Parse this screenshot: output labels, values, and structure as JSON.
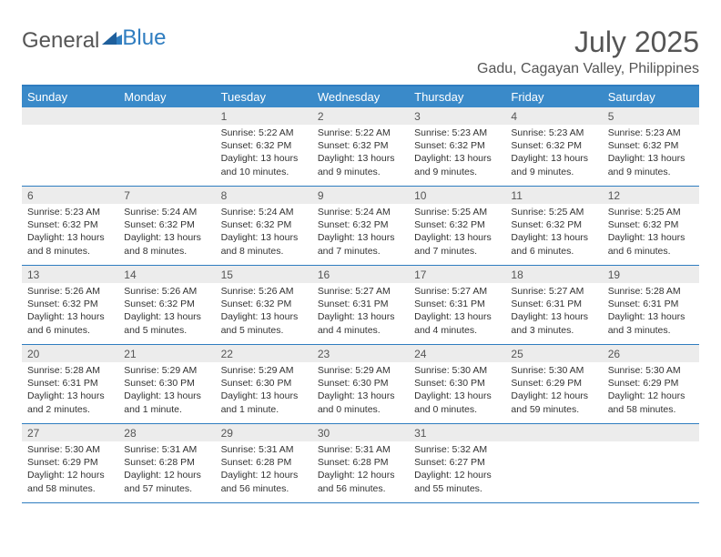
{
  "brand": {
    "part1": "General",
    "part2": "Blue"
  },
  "title": "July 2025",
  "location": "Gadu, Cagayan Valley, Philippines",
  "colors": {
    "header_bg": "#3A8AC9",
    "border": "#2F7DC0",
    "daynum_bg": "#ececec",
    "text": "#323232",
    "title_text": "#555555",
    "white": "#ffffff"
  },
  "day_names": [
    "Sunday",
    "Monday",
    "Tuesday",
    "Wednesday",
    "Thursday",
    "Friday",
    "Saturday"
  ],
  "weeks": [
    [
      {
        "n": "",
        "sr": "",
        "ss": "",
        "dl": ""
      },
      {
        "n": "",
        "sr": "",
        "ss": "",
        "dl": ""
      },
      {
        "n": "1",
        "sr": "Sunrise: 5:22 AM",
        "ss": "Sunset: 6:32 PM",
        "dl": "Daylight: 13 hours and 10 minutes."
      },
      {
        "n": "2",
        "sr": "Sunrise: 5:22 AM",
        "ss": "Sunset: 6:32 PM",
        "dl": "Daylight: 13 hours and 9 minutes."
      },
      {
        "n": "3",
        "sr": "Sunrise: 5:23 AM",
        "ss": "Sunset: 6:32 PM",
        "dl": "Daylight: 13 hours and 9 minutes."
      },
      {
        "n": "4",
        "sr": "Sunrise: 5:23 AM",
        "ss": "Sunset: 6:32 PM",
        "dl": "Daylight: 13 hours and 9 minutes."
      },
      {
        "n": "5",
        "sr": "Sunrise: 5:23 AM",
        "ss": "Sunset: 6:32 PM",
        "dl": "Daylight: 13 hours and 9 minutes."
      }
    ],
    [
      {
        "n": "6",
        "sr": "Sunrise: 5:23 AM",
        "ss": "Sunset: 6:32 PM",
        "dl": "Daylight: 13 hours and 8 minutes."
      },
      {
        "n": "7",
        "sr": "Sunrise: 5:24 AM",
        "ss": "Sunset: 6:32 PM",
        "dl": "Daylight: 13 hours and 8 minutes."
      },
      {
        "n": "8",
        "sr": "Sunrise: 5:24 AM",
        "ss": "Sunset: 6:32 PM",
        "dl": "Daylight: 13 hours and 8 minutes."
      },
      {
        "n": "9",
        "sr": "Sunrise: 5:24 AM",
        "ss": "Sunset: 6:32 PM",
        "dl": "Daylight: 13 hours and 7 minutes."
      },
      {
        "n": "10",
        "sr": "Sunrise: 5:25 AM",
        "ss": "Sunset: 6:32 PM",
        "dl": "Daylight: 13 hours and 7 minutes."
      },
      {
        "n": "11",
        "sr": "Sunrise: 5:25 AM",
        "ss": "Sunset: 6:32 PM",
        "dl": "Daylight: 13 hours and 6 minutes."
      },
      {
        "n": "12",
        "sr": "Sunrise: 5:25 AM",
        "ss": "Sunset: 6:32 PM",
        "dl": "Daylight: 13 hours and 6 minutes."
      }
    ],
    [
      {
        "n": "13",
        "sr": "Sunrise: 5:26 AM",
        "ss": "Sunset: 6:32 PM",
        "dl": "Daylight: 13 hours and 6 minutes."
      },
      {
        "n": "14",
        "sr": "Sunrise: 5:26 AM",
        "ss": "Sunset: 6:32 PM",
        "dl": "Daylight: 13 hours and 5 minutes."
      },
      {
        "n": "15",
        "sr": "Sunrise: 5:26 AM",
        "ss": "Sunset: 6:32 PM",
        "dl": "Daylight: 13 hours and 5 minutes."
      },
      {
        "n": "16",
        "sr": "Sunrise: 5:27 AM",
        "ss": "Sunset: 6:31 PM",
        "dl": "Daylight: 13 hours and 4 minutes."
      },
      {
        "n": "17",
        "sr": "Sunrise: 5:27 AM",
        "ss": "Sunset: 6:31 PM",
        "dl": "Daylight: 13 hours and 4 minutes."
      },
      {
        "n": "18",
        "sr": "Sunrise: 5:27 AM",
        "ss": "Sunset: 6:31 PM",
        "dl": "Daylight: 13 hours and 3 minutes."
      },
      {
        "n": "19",
        "sr": "Sunrise: 5:28 AM",
        "ss": "Sunset: 6:31 PM",
        "dl": "Daylight: 13 hours and 3 minutes."
      }
    ],
    [
      {
        "n": "20",
        "sr": "Sunrise: 5:28 AM",
        "ss": "Sunset: 6:31 PM",
        "dl": "Daylight: 13 hours and 2 minutes."
      },
      {
        "n": "21",
        "sr": "Sunrise: 5:29 AM",
        "ss": "Sunset: 6:30 PM",
        "dl": "Daylight: 13 hours and 1 minute."
      },
      {
        "n": "22",
        "sr": "Sunrise: 5:29 AM",
        "ss": "Sunset: 6:30 PM",
        "dl": "Daylight: 13 hours and 1 minute."
      },
      {
        "n": "23",
        "sr": "Sunrise: 5:29 AM",
        "ss": "Sunset: 6:30 PM",
        "dl": "Daylight: 13 hours and 0 minutes."
      },
      {
        "n": "24",
        "sr": "Sunrise: 5:30 AM",
        "ss": "Sunset: 6:30 PM",
        "dl": "Daylight: 13 hours and 0 minutes."
      },
      {
        "n": "25",
        "sr": "Sunrise: 5:30 AM",
        "ss": "Sunset: 6:29 PM",
        "dl": "Daylight: 12 hours and 59 minutes."
      },
      {
        "n": "26",
        "sr": "Sunrise: 5:30 AM",
        "ss": "Sunset: 6:29 PM",
        "dl": "Daylight: 12 hours and 58 minutes."
      }
    ],
    [
      {
        "n": "27",
        "sr": "Sunrise: 5:30 AM",
        "ss": "Sunset: 6:29 PM",
        "dl": "Daylight: 12 hours and 58 minutes."
      },
      {
        "n": "28",
        "sr": "Sunrise: 5:31 AM",
        "ss": "Sunset: 6:28 PM",
        "dl": "Daylight: 12 hours and 57 minutes."
      },
      {
        "n": "29",
        "sr": "Sunrise: 5:31 AM",
        "ss": "Sunset: 6:28 PM",
        "dl": "Daylight: 12 hours and 56 minutes."
      },
      {
        "n": "30",
        "sr": "Sunrise: 5:31 AM",
        "ss": "Sunset: 6:28 PM",
        "dl": "Daylight: 12 hours and 56 minutes."
      },
      {
        "n": "31",
        "sr": "Sunrise: 5:32 AM",
        "ss": "Sunset: 6:27 PM",
        "dl": "Daylight: 12 hours and 55 minutes."
      },
      {
        "n": "",
        "sr": "",
        "ss": "",
        "dl": ""
      },
      {
        "n": "",
        "sr": "",
        "ss": "",
        "dl": ""
      }
    ]
  ]
}
